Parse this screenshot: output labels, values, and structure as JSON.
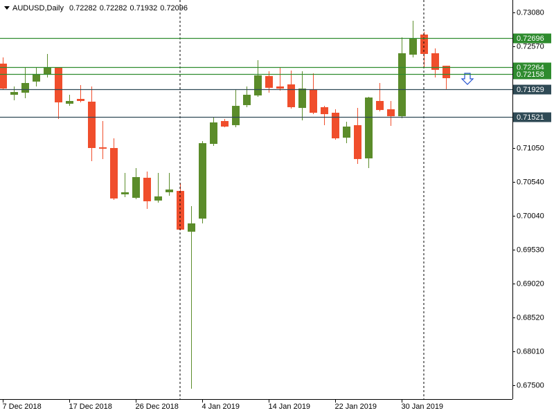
{
  "chart_data": {
    "type": "candlestick",
    "title": "AUDUSD,Daily",
    "header_values": [
      "0.72282",
      "0.72282",
      "0.71932",
      "0.72096"
    ],
    "categories": [
      "7 Dec 2018",
      null,
      null,
      null,
      null,
      null,
      "17 Dec 2018",
      null,
      null,
      null,
      null,
      null,
      "26 Dec 2018",
      null,
      null,
      null,
      null,
      null,
      "4 Jan 2019",
      null,
      null,
      null,
      null,
      null,
      "14 Jan 2019",
      null,
      null,
      null,
      null,
      null,
      "22 Jan 2019",
      null,
      null,
      null,
      null,
      null,
      "30 Jan 2019",
      null,
      null,
      null,
      null
    ],
    "open": [
      0.72314,
      0.71848,
      0.71879,
      0.72045,
      0.72148,
      0.72262,
      0.71714,
      0.71786,
      0.71745,
      0.71061,
      0.71051,
      0.70358,
      0.70306,
      0.70606,
      0.70265,
      0.70389,
      0.70409,
      0.69799,
      0.69995,
      0.71113,
      0.71455,
      0.71393,
      0.71693,
      0.71838,
      0.72128,
      0.71972,
      0.72003,
      0.71651,
      0.71931,
      0.71662,
      0.71579,
      0.71206,
      0.71393,
      0.70896,
      0.71755,
      0.71631,
      0.71527,
      0.72448,
      0.72749,
      0.72469,
      0.72282
    ],
    "high": [
      0.72407,
      0.71972,
      0.72252,
      0.72262,
      0.72459,
      0.72262,
      0.71848,
      0.71993,
      0.71972,
      0.71455,
      0.71196,
      0.70679,
      0.70751,
      0.70699,
      0.70679,
      0.70679,
      0.70523,
      0.70182,
      0.71155,
      0.71507,
      0.71486,
      0.71921,
      0.71972,
      0.72366,
      0.722,
      0.72262,
      0.7221,
      0.722,
      0.72169,
      0.71682,
      0.71631,
      0.71444,
      0.71651,
      0.71817,
      0.72024,
      0.71755,
      0.72707,
      0.72956,
      0.7279,
      0.72542,
      0.72282
    ],
    "low": [
      0.71921,
      0.71765,
      0.71796,
      0.71972,
      0.72107,
      0.71486,
      0.71682,
      0.71734,
      0.70854,
      0.70886,
      0.70275,
      0.70316,
      0.70285,
      0.7014,
      0.70233,
      0.70337,
      0.69819,
      0.67449,
      0.69923,
      0.71082,
      0.71362,
      0.71362,
      0.71662,
      0.71817,
      0.71879,
      0.7191,
      0.71641,
      0.71465,
      0.71558,
      0.71393,
      0.71175,
      0.71124,
      0.70813,
      0.70751,
      0.716,
      0.71382,
      0.71496,
      0.72407,
      0.72262,
      0.72107,
      0.71932
    ],
    "close": [
      0.71941,
      0.71889,
      0.72024,
      0.72159,
      0.72262,
      0.71734,
      0.71755,
      0.71755,
      0.71051,
      0.71041,
      0.70296,
      0.70389,
      0.70616,
      0.70254,
      0.70327,
      0.7043,
      0.6983,
      0.69923,
      0.71124,
      0.71434,
      0.71372,
      0.71682,
      0.71848,
      0.72138,
      0.71952,
      0.71941,
      0.71662,
      0.71941,
      0.71579,
      0.71558,
      0.71196,
      0.71372,
      0.70886,
      0.71807,
      0.7162,
      0.71527,
      0.72469,
      0.72686,
      0.72459,
      0.72221,
      0.72096
    ],
    "up_color": "#5b8c2a",
    "down_color": "#f04e2c",
    "ylim": [
      0.67294,
      0.73266
    ],
    "yticks": [
      {
        "value": 0.7308,
        "label": "0.73080"
      },
      {
        "value": 0.7257,
        "label": "0.72570"
      },
      {
        "value": 0.7105,
        "label": "0.71050"
      },
      {
        "value": 0.7054,
        "label": "0.70540"
      },
      {
        "value": 0.7004,
        "label": "0.70040"
      },
      {
        "value": 0.6953,
        "label": "0.69530"
      },
      {
        "value": 0.6902,
        "label": "0.69020"
      },
      {
        "value": 0.6852,
        "label": "0.68520"
      },
      {
        "value": 0.6801,
        "label": "0.68010"
      },
      {
        "value": 0.675,
        "label": "0.67500"
      }
    ],
    "levels": [
      {
        "value": 0.72696,
        "label": "0.72696",
        "color": "#2e8b2e"
      },
      {
        "value": 0.72264,
        "label": "0.72264",
        "color": "#2e8b2e"
      },
      {
        "value": 0.72158,
        "label": "0.72158",
        "color": "#2e8b2e"
      },
      {
        "value": 0.71929,
        "label": "0.71929",
        "color": "#2f4a55"
      },
      {
        "value": 0.71521,
        "label": "0.71521",
        "color": "#2f4a55"
      }
    ]
  }
}
